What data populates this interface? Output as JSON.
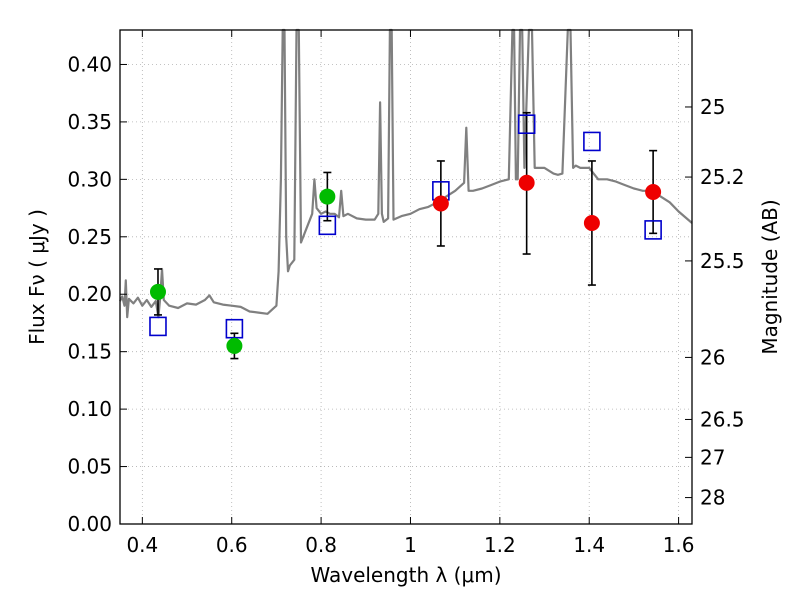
{
  "chart_data": {
    "type": "scatter",
    "title": "",
    "xlabel": "Wavelength  λ (μm)",
    "ylabel": "Flux  Fν  ( μJy )",
    "ylabel2": "Magnitude (AB)",
    "xlim": [
      0.35,
      1.63
    ],
    "ylim": [
      0.0,
      0.43
    ],
    "grid": true,
    "x_ticks": [
      0.4,
      0.6,
      0.8,
      1.0,
      1.2,
      1.4,
      1.6
    ],
    "x_tick_labels": [
      "0.4",
      "0.6",
      "0.8",
      "1",
      "1.2",
      "1.4",
      "1.6"
    ],
    "y_ticks": [
      0.0,
      0.05,
      0.1,
      0.15,
      0.2,
      0.25,
      0.3,
      0.35,
      0.4
    ],
    "y_tick_labels": [
      "0.00",
      "0.05",
      "0.10",
      "0.15",
      "0.20",
      "0.25",
      "0.30",
      "0.35",
      "0.40"
    ],
    "right_ticks": [
      {
        "label": "25",
        "flux": 0.363
      },
      {
        "label": "25.2",
        "flux": 0.302
      },
      {
        "label": "25.5",
        "flux": 0.229
      },
      {
        "label": "26",
        "flux": 0.145
      },
      {
        "label": "26.5",
        "flux": 0.091
      },
      {
        "label": "27",
        "flux": 0.058
      },
      {
        "label": "28",
        "flux": 0.023
      }
    ],
    "colors": {
      "spectrum": "#808080",
      "green": "#00bb00",
      "red": "#ee0000",
      "model": "#0000cc",
      "errorbar": "#000000",
      "grid": "#b0b0b0"
    },
    "series": [
      {
        "name": "spectrum",
        "kind": "line",
        "points": [
          [
            0.35,
            0.194
          ],
          [
            0.355,
            0.198
          ],
          [
            0.36,
            0.19
          ],
          [
            0.363,
            0.212
          ],
          [
            0.366,
            0.18
          ],
          [
            0.37,
            0.196
          ],
          [
            0.38,
            0.192
          ],
          [
            0.39,
            0.197
          ],
          [
            0.4,
            0.19
          ],
          [
            0.41,
            0.195
          ],
          [
            0.42,
            0.189
          ],
          [
            0.43,
            0.194
          ],
          [
            0.436,
            0.18
          ],
          [
            0.44,
            0.197
          ],
          [
            0.444,
            0.222
          ],
          [
            0.448,
            0.195
          ],
          [
            0.46,
            0.19
          ],
          [
            0.48,
            0.188
          ],
          [
            0.5,
            0.192
          ],
          [
            0.52,
            0.191
          ],
          [
            0.54,
            0.195
          ],
          [
            0.55,
            0.199
          ],
          [
            0.56,
            0.193
          ],
          [
            0.58,
            0.191
          ],
          [
            0.6,
            0.19
          ],
          [
            0.62,
            0.189
          ],
          [
            0.64,
            0.185
          ],
          [
            0.66,
            0.184
          ],
          [
            0.68,
            0.183
          ],
          [
            0.7,
            0.19
          ],
          [
            0.705,
            0.22
          ],
          [
            0.71,
            0.3
          ],
          [
            0.714,
            0.43
          ],
          [
            0.718,
            0.43
          ],
          [
            0.722,
            0.25
          ],
          [
            0.726,
            0.22
          ],
          [
            0.73,
            0.225
          ],
          [
            0.74,
            0.23
          ],
          [
            0.745,
            0.43
          ],
          [
            0.75,
            0.43
          ],
          [
            0.755,
            0.245
          ],
          [
            0.77,
            0.26
          ],
          [
            0.78,
            0.27
          ],
          [
            0.785,
            0.3
          ],
          [
            0.79,
            0.275
          ],
          [
            0.8,
            0.27
          ],
          [
            0.81,
            0.272
          ],
          [
            0.82,
            0.27
          ],
          [
            0.83,
            0.27
          ],
          [
            0.84,
            0.267
          ],
          [
            0.845,
            0.29
          ],
          [
            0.85,
            0.268
          ],
          [
            0.86,
            0.27
          ],
          [
            0.88,
            0.266
          ],
          [
            0.9,
            0.265
          ],
          [
            0.92,
            0.265
          ],
          [
            0.928,
            0.27
          ],
          [
            0.932,
            0.367
          ],
          [
            0.936,
            0.27
          ],
          [
            0.94,
            0.263
          ],
          [
            0.95,
            0.266
          ],
          [
            0.954,
            0.43
          ],
          [
            0.958,
            0.43
          ],
          [
            0.962,
            0.265
          ],
          [
            0.98,
            0.268
          ],
          [
            1.0,
            0.27
          ],
          [
            1.02,
            0.274
          ],
          [
            1.04,
            0.276
          ],
          [
            1.06,
            0.28
          ],
          [
            1.08,
            0.285
          ],
          [
            1.1,
            0.29
          ],
          [
            1.12,
            0.297
          ],
          [
            1.125,
            0.345
          ],
          [
            1.13,
            0.29
          ],
          [
            1.14,
            0.29
          ],
          [
            1.16,
            0.292
          ],
          [
            1.18,
            0.295
          ],
          [
            1.2,
            0.298
          ],
          [
            1.22,
            0.3
          ],
          [
            1.228,
            0.43
          ],
          [
            1.232,
            0.43
          ],
          [
            1.236,
            0.3
          ],
          [
            1.24,
            0.3
          ],
          [
            1.245,
            0.43
          ],
          [
            1.25,
            0.43
          ],
          [
            1.255,
            0.31
          ],
          [
            1.265,
            0.43
          ],
          [
            1.272,
            0.43
          ],
          [
            1.278,
            0.31
          ],
          [
            1.29,
            0.31
          ],
          [
            1.3,
            0.31
          ],
          [
            1.32,
            0.305
          ],
          [
            1.33,
            0.304
          ],
          [
            1.34,
            0.305
          ],
          [
            1.352,
            0.43
          ],
          [
            1.358,
            0.43
          ],
          [
            1.364,
            0.31
          ],
          [
            1.37,
            0.312
          ],
          [
            1.38,
            0.31
          ],
          [
            1.4,
            0.31
          ],
          [
            1.42,
            0.3
          ],
          [
            1.44,
            0.3
          ],
          [
            1.46,
            0.298
          ],
          [
            1.48,
            0.295
          ],
          [
            1.5,
            0.292
          ],
          [
            1.52,
            0.29
          ],
          [
            1.54,
            0.29
          ],
          [
            1.56,
            0.285
          ],
          [
            1.58,
            0.28
          ],
          [
            1.6,
            0.272
          ],
          [
            1.63,
            0.262
          ]
        ]
      },
      {
        "name": "observed-green",
        "kind": "points",
        "points": [
          {
            "x": 0.435,
            "y": 0.202,
            "lo": 0.182,
            "hi": 0.222
          },
          {
            "x": 0.606,
            "y": 0.155,
            "lo": 0.144,
            "hi": 0.166
          },
          {
            "x": 0.814,
            "y": 0.285,
            "lo": 0.264,
            "hi": 0.306
          }
        ]
      },
      {
        "name": "observed-red",
        "kind": "points",
        "points": [
          {
            "x": 1.068,
            "y": 0.279,
            "lo": 0.242,
            "hi": 0.316
          },
          {
            "x": 1.26,
            "y": 0.297,
            "lo": 0.235,
            "hi": 0.358
          },
          {
            "x": 1.406,
            "y": 0.262,
            "lo": 0.208,
            "hi": 0.316
          },
          {
            "x": 1.543,
            "y": 0.289,
            "lo": 0.253,
            "hi": 0.325
          }
        ]
      },
      {
        "name": "model",
        "kind": "points",
        "points": [
          {
            "x": 0.435,
            "y": 0.172
          },
          {
            "x": 0.606,
            "y": 0.17
          },
          {
            "x": 0.814,
            "y": 0.26
          },
          {
            "x": 1.068,
            "y": 0.29
          },
          {
            "x": 1.26,
            "y": 0.348
          },
          {
            "x": 1.406,
            "y": 0.333
          },
          {
            "x": 1.543,
            "y": 0.256
          }
        ]
      }
    ]
  }
}
